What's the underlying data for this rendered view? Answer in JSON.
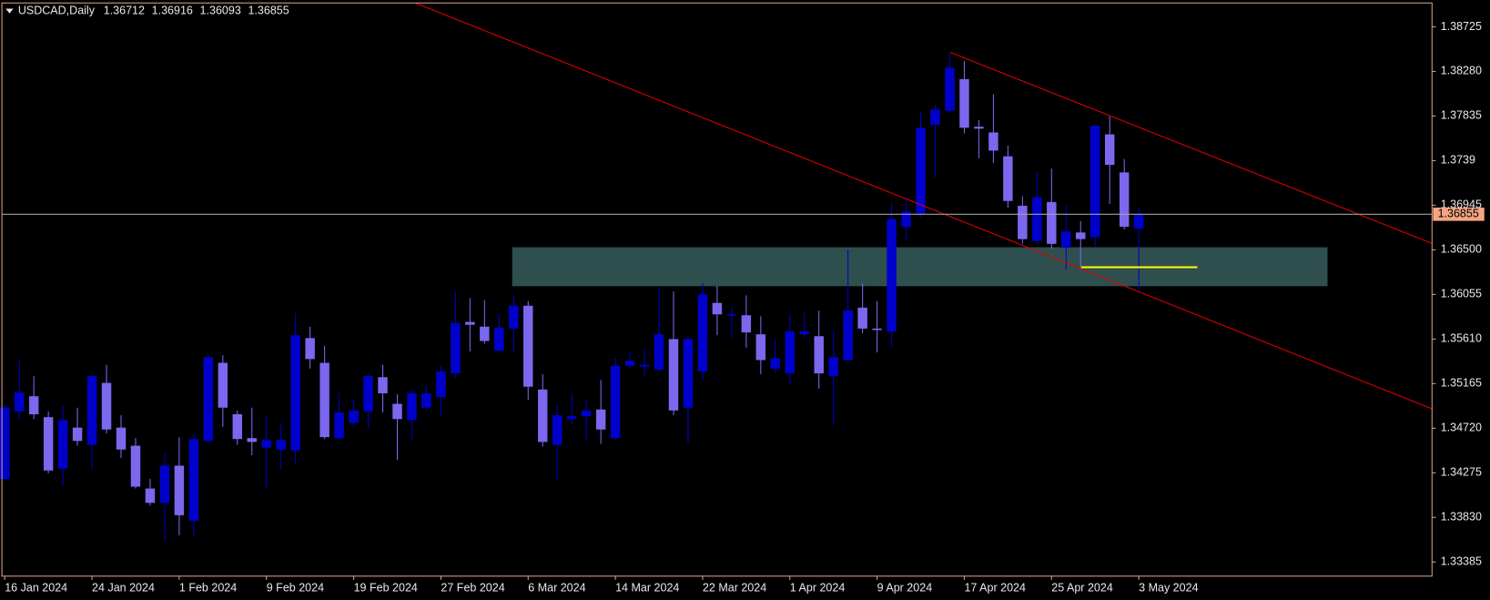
{
  "chart_data": {
    "type": "candlestick",
    "title": "USDCAD,Daily",
    "bull_color": "#0000cd",
    "bear_color": "#7b68ee",
    "categories": [
      "16 Jan 2024",
      null,
      null,
      null,
      null,
      null,
      "24 Jan 2024",
      null,
      null,
      null,
      null,
      null,
      "1 Feb 2024",
      null,
      null,
      null,
      null,
      null,
      "9 Feb 2024",
      null,
      null,
      null,
      null,
      null,
      "19 Feb 2024",
      null,
      null,
      null,
      null,
      null,
      "27 Feb 2024",
      null,
      null,
      null,
      null,
      null,
      "6 Mar 2024",
      null,
      null,
      null,
      null,
      null,
      "14 Mar 2024",
      null,
      null,
      null,
      null,
      null,
      "22 Mar 2024",
      null,
      null,
      null,
      null,
      null,
      "1 Apr 2024",
      null,
      null,
      null,
      null,
      null,
      "9 Apr 2024",
      null,
      null,
      null,
      null,
      null,
      "17 Apr 2024",
      null,
      null,
      null,
      null,
      null,
      "25 Apr 2024",
      null,
      null,
      null,
      null,
      null,
      "3 May 2024"
    ],
    "open": [
      1.34213,
      1.34887,
      1.35039,
      1.3483,
      1.34317,
      1.34726,
      1.34555,
      1.35172,
      1.34726,
      1.34545,
      1.34118,
      1.33975,
      1.34346,
      1.33795,
      1.34593,
      1.35372,
      1.34859,
      1.34621,
      1.34526,
      1.34507,
      1.34498,
      1.35619,
      1.35372,
      1.34621,
      1.34773,
      1.34887,
      1.35229,
      1.34963,
      1.34802,
      1.34925,
      1.3503,
      1.35267,
      1.3578,
      1.35733,
      1.35495,
      1.35714,
      1.35942,
      1.35106,
      1.34555,
      1.34811,
      1.3484,
      1.34906,
      1.34621,
      1.35343,
      1.35334,
      1.35305,
      1.35609,
      1.34925,
      1.35286,
      1.3597,
      1.35847,
      1.35847,
      1.35657,
      1.35315,
      1.35267,
      1.35657,
      1.35638,
      1.35239,
      1.354,
      1.35923,
      1.35714,
      1.35685,
      1.3673,
      1.36863,
      1.37747,
      1.37889,
      1.38203,
      1.37728,
      1.37671,
      1.37433,
      1.36939,
      1.36588,
      1.36977,
      1.36521,
      1.36673,
      1.36626,
      1.37652,
      1.37272,
      1.36712
    ],
    "high": [
      1.34954,
      1.3541,
      1.35239,
      1.34887,
      1.34944,
      1.34925,
      1.35267,
      1.35353,
      1.34849,
      1.34621,
      1.34213,
      1.34479,
      1.34631,
      1.34669,
      1.35457,
      1.35448,
      1.34897,
      1.34925,
      1.34849,
      1.34764,
      1.35866,
      1.35733,
      1.35543,
      1.35068,
      1.35001,
      1.35258,
      1.35353,
      1.35058,
      1.35115,
      1.35144,
      1.35343,
      1.36084,
      1.36018,
      1.35999,
      1.35856,
      1.36046,
      1.35989,
      1.35258,
      1.34954,
      1.35068,
      1.35001,
      1.35201,
      1.35419,
      1.35476,
      1.35514,
      1.36122,
      1.36084,
      1.35657,
      1.3617,
      1.36141,
      1.35932,
      1.36046,
      1.35837,
      1.356,
      1.35856,
      1.35866,
      1.35894,
      1.35695,
      1.36502,
      1.3616,
      1.35989,
      1.36968,
      1.37015,
      1.3787,
      1.37946,
      1.38459,
      1.38383,
      1.37794,
      1.38051,
      1.37538,
      1.37034,
      1.37281,
      1.3731,
      1.36949,
      1.36787,
      1.37747,
      1.37832,
      1.37405,
      1.36916
    ],
    "low": [
      1.34194,
      1.34811,
      1.34811,
      1.3427,
      1.34146,
      1.34545,
      1.34308,
      1.34669,
      1.34422,
      1.34118,
      1.33947,
      1.33595,
      1.33652,
      1.33643,
      1.34564,
      1.34735,
      1.34555,
      1.3445,
      1.34127,
      1.34308,
      1.34365,
      1.35315,
      1.34612,
      1.34602,
      1.34726,
      1.34716,
      1.34878,
      1.34403,
      1.34612,
      1.34897,
      1.3484,
      1.3522,
      1.35486,
      1.35562,
      1.35467,
      1.35476,
      1.35001,
      1.34536,
      1.34194,
      1.34754,
      1.34593,
      1.34564,
      1.34602,
      1.35315,
      1.35239,
      1.35286,
      1.34849,
      1.34564,
      1.35201,
      1.35647,
      1.35619,
      1.35524,
      1.35258,
      1.35277,
      1.35153,
      1.35619,
      1.35115,
      1.34754,
      1.35372,
      1.35666,
      1.35476,
      1.35524,
      1.36588,
      1.36825,
      1.37224,
      1.3787,
      1.37661,
      1.37414,
      1.37367,
      1.3692,
      1.36559,
      1.3655,
      1.36512,
      1.36303,
      1.36303,
      1.36531,
      1.36958,
      1.36702,
      1.36093
    ],
    "close": [
      1.34925,
      1.35077,
      1.34859,
      1.34298,
      1.34802,
      1.34593,
      1.35239,
      1.34707,
      1.34507,
      1.34137,
      1.33975,
      1.34346,
      1.33852,
      1.34612,
      1.35429,
      1.34925,
      1.34612,
      1.34583,
      1.34602,
      1.34602,
      1.35647,
      1.3541,
      1.34631,
      1.34878,
      1.34897,
      1.35239,
      1.35068,
      1.34811,
      1.35068,
      1.35068,
      1.35286,
      1.35771,
      1.35752,
      1.3559,
      1.35723,
      1.35942,
      1.35134,
      1.34583,
      1.34849,
      1.3484,
      1.34897,
      1.34707,
      1.35343,
      1.35391,
      1.35353,
      1.35657,
      1.34897,
      1.35609,
      1.36056,
      1.35856,
      1.35856,
      1.35676,
      1.354,
      1.35419,
      1.35685,
      1.35685,
      1.35267,
      1.35429,
      1.35894,
      1.35714,
      1.35704,
      1.36806,
      1.36882,
      1.37718,
      1.37899,
      1.38317,
      1.37718,
      1.37709,
      1.3749,
      1.36987,
      1.36607,
      1.37025,
      1.36559,
      1.36683,
      1.36607,
      1.37737,
      1.37348,
      1.3673,
      1.36855
    ],
    "ylim": [
      1.33244,
      1.38963
    ],
    "yticks": [
      1.38725,
      {
        "value": 1.3828,
        "label": "1.38280"
      },
      1.37835,
      1.3739,
      1.36945,
      {
        "value": 1.365,
        "label": "1.36500"
      },
      1.36055,
      {
        "value": 1.3561,
        "label": "1.35610"
      },
      1.35165,
      {
        "value": 1.3472,
        "label": "1.34720"
      },
      1.34275,
      {
        "value": 1.3383,
        "label": "1.33830"
      },
      1.33385
    ],
    "grid": false
  }
}
